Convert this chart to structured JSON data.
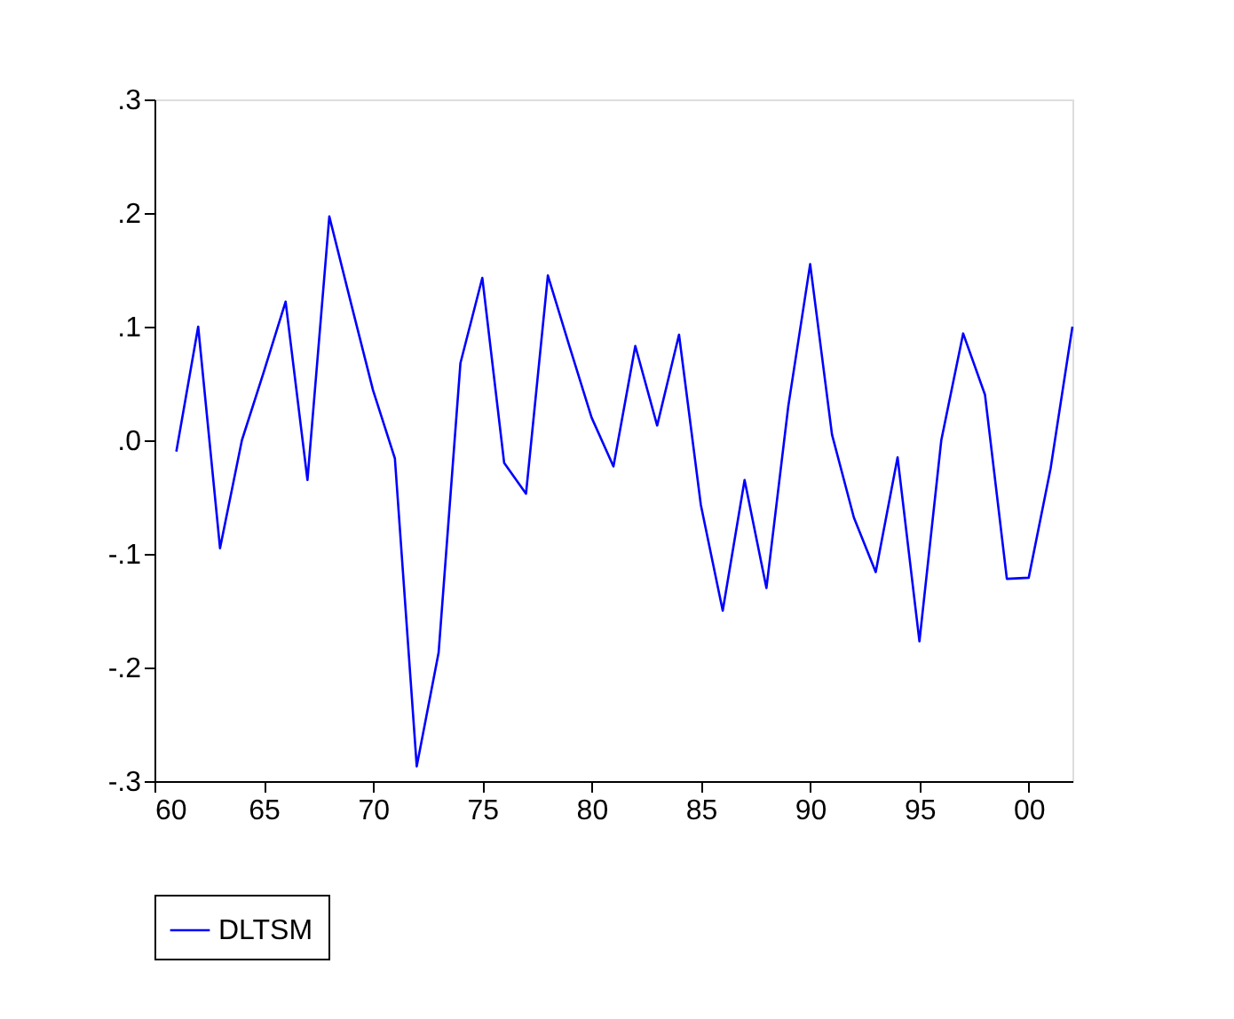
{
  "chart_data": {
    "type": "line",
    "x": [
      1961,
      1962,
      1963,
      1964,
      1965,
      1966,
      1967,
      1968,
      1969,
      1970,
      1971,
      1972,
      1973,
      1974,
      1975,
      1976,
      1977,
      1978,
      1979,
      1980,
      1981,
      1982,
      1983,
      1984,
      1985,
      1986,
      1987,
      1988,
      1989,
      1990,
      1991,
      1992,
      1993,
      1994,
      1995,
      1996,
      1997,
      1998,
      1999,
      2000,
      2001,
      2002
    ],
    "series": [
      {
        "name": "DLTSM",
        "color": "#0000ff",
        "values": [
          -0.01,
          0.1,
          -0.095,
          0.0,
          0.06,
          0.122,
          -0.035,
          0.197,
          0.12,
          0.044,
          -0.016,
          -0.287,
          -0.187,
          0.068,
          0.143,
          -0.02,
          -0.047,
          0.145,
          0.082,
          0.02,
          -0.023,
          0.083,
          0.013,
          0.093,
          -0.057,
          -0.15,
          -0.035,
          -0.13,
          0.03,
          0.155,
          0.005,
          -0.068,
          -0.116,
          -0.015,
          -0.177,
          0.0,
          0.094,
          0.04,
          -0.122,
          -0.121,
          -0.025,
          0.1
        ]
      }
    ],
    "xlim": [
      1960,
      2002
    ],
    "xticks": [
      {
        "value": 1960,
        "label": "60"
      },
      {
        "value": 1965,
        "label": "65"
      },
      {
        "value": 1970,
        "label": "70"
      },
      {
        "value": 1975,
        "label": "75"
      },
      {
        "value": 1980,
        "label": "80"
      },
      {
        "value": 1985,
        "label": "85"
      },
      {
        "value": 1990,
        "label": "90"
      },
      {
        "value": 1995,
        "label": "95"
      },
      {
        "value": 2000,
        "label": "00"
      }
    ],
    "ylim": [
      -0.3,
      0.3
    ],
    "yticks": [
      {
        "value": -0.3,
        "label": "-.3"
      },
      {
        "value": -0.2,
        "label": "-.2"
      },
      {
        "value": -0.1,
        "label": "-.1"
      },
      {
        "value": 0,
        "label": ".0"
      },
      {
        "value": 0.1,
        "label": ".1"
      },
      {
        "value": 0.2,
        "label": ".2"
      },
      {
        "value": 0.3,
        "label": ".3"
      }
    ],
    "grid": false,
    "legend": "bottom",
    "line_style": "solid",
    "marker": "none"
  }
}
